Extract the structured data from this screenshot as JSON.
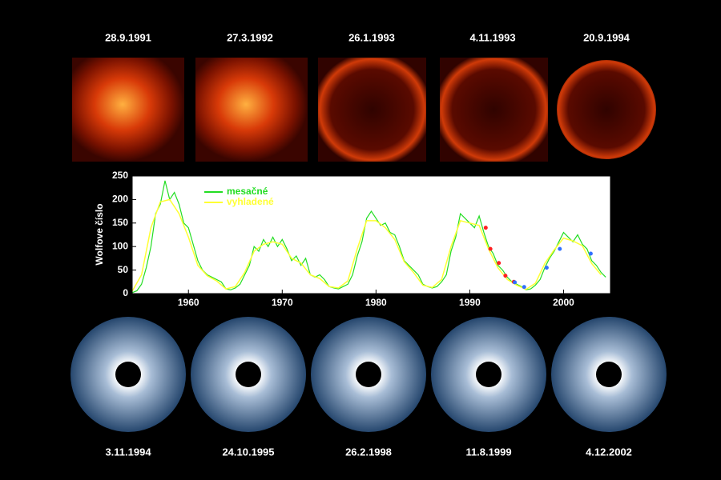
{
  "top_dates": [
    "28.9.1991",
    "27.3.1992",
    "26.1.1993",
    "4.11.1993",
    "20.9.1994"
  ],
  "bottom_dates": [
    "3.11.1994",
    "24.10.1995",
    "26.2.1998",
    "11.8.1999",
    "4.12.2002"
  ],
  "chart_data": {
    "type": "line",
    "ylabel": "Wolfove číslo",
    "xlim": [
      1954,
      2005
    ],
    "xticks": [
      1960,
      1970,
      1980,
      1990,
      2000
    ],
    "ylim": [
      0,
      250
    ],
    "yticks": [
      0,
      50,
      100,
      150,
      200,
      250
    ],
    "legend": "upper-left",
    "series": [
      {
        "name": "mesačné",
        "color": "#22dd22",
        "x": [
          1954,
          1954.5,
          1955,
          1955.5,
          1956,
          1956.5,
          1957,
          1957.5,
          1958,
          1958.5,
          1959,
          1959.5,
          1960,
          1960.5,
          1961,
          1961.5,
          1962,
          1962.5,
          1963,
          1963.5,
          1964,
          1964.5,
          1965,
          1965.5,
          1966,
          1966.5,
          1967,
          1967.5,
          1968,
          1968.5,
          1969,
          1969.5,
          1970,
          1970.5,
          1971,
          1971.5,
          1972,
          1972.5,
          1973,
          1973.5,
          1974,
          1974.5,
          1975,
          1975.5,
          1976,
          1976.5,
          1977,
          1977.5,
          1978,
          1978.5,
          1979,
          1979.5,
          1980,
          1980.5,
          1981,
          1981.5,
          1982,
          1982.5,
          1983,
          1983.5,
          1984,
          1984.5,
          1985,
          1985.5,
          1986,
          1986.5,
          1987,
          1987.5,
          1988,
          1988.5,
          1989,
          1989.5,
          1990,
          1990.5,
          1991,
          1991.5,
          1992,
          1992.5,
          1993,
          1993.5,
          1994,
          1994.5,
          1995,
          1995.5,
          1996,
          1996.5,
          1997,
          1997.5,
          1998,
          1998.5,
          1999,
          1999.5,
          2000,
          2000.5,
          2001,
          2001.5,
          2002,
          2002.5,
          2003,
          2003.5,
          2004,
          2004.5
        ],
        "values": [
          2,
          6,
          20,
          55,
          100,
          170,
          190,
          240,
          200,
          215,
          190,
          150,
          140,
          105,
          70,
          50,
          40,
          35,
          30,
          25,
          10,
          8,
          12,
          20,
          40,
          60,
          100,
          90,
          115,
          100,
          120,
          100,
          115,
          95,
          70,
          80,
          60,
          75,
          40,
          35,
          40,
          30,
          15,
          12,
          10,
          15,
          20,
          40,
          80,
          110,
          160,
          175,
          160,
          145,
          150,
          130,
          125,
          100,
          70,
          60,
          50,
          40,
          20,
          15,
          12,
          15,
          25,
          40,
          90,
          120,
          170,
          160,
          150,
          140,
          165,
          130,
          100,
          85,
          60,
          50,
          35,
          25,
          20,
          15,
          8,
          10,
          18,
          30,
          55,
          75,
          90,
          110,
          130,
          120,
          110,
          125,
          105,
          95,
          70,
          60,
          45,
          35
        ]
      },
      {
        "name": "vyhladené",
        "color": "#ffff33",
        "x": [
          1954,
          1955,
          1956,
          1957,
          1958,
          1959,
          1960,
          1961,
          1962,
          1963,
          1964,
          1965,
          1966,
          1967,
          1968,
          1969,
          1970,
          1971,
          1972,
          1973,
          1974,
          1975,
          1976,
          1977,
          1978,
          1979,
          1980,
          1981,
          1982,
          1983,
          1984,
          1985,
          1986,
          1987,
          1988,
          1989,
          1990,
          1991,
          1992,
          1993,
          1994,
          1995,
          1996,
          1997,
          1998,
          1999,
          2000,
          2001,
          2002,
          2003,
          2004
        ],
        "values": [
          5,
          40,
          140,
          195,
          200,
          170,
          120,
          60,
          38,
          27,
          10,
          15,
          45,
          90,
          105,
          110,
          105,
          75,
          65,
          40,
          32,
          15,
          12,
          27,
          95,
          155,
          155,
          140,
          115,
          68,
          45,
          18,
          13,
          30,
          100,
          155,
          150,
          145,
          95,
          55,
          30,
          18,
          9,
          22,
          64,
          93,
          118,
          112,
          102,
          64,
          40
        ]
      }
    ],
    "markers": [
      {
        "color": "#ff2020",
        "x": [
          1991.7,
          1992.2,
          1993.1,
          1993.8,
          1994.7
        ],
        "values": [
          140,
          95,
          65,
          38,
          25
        ]
      },
      {
        "color": "#3070ff",
        "x": [
          1994.8,
          1995.8,
          1998.2,
          1999.6,
          2002.9
        ],
        "values": [
          24,
          14,
          55,
          95,
          85
        ]
      }
    ]
  }
}
